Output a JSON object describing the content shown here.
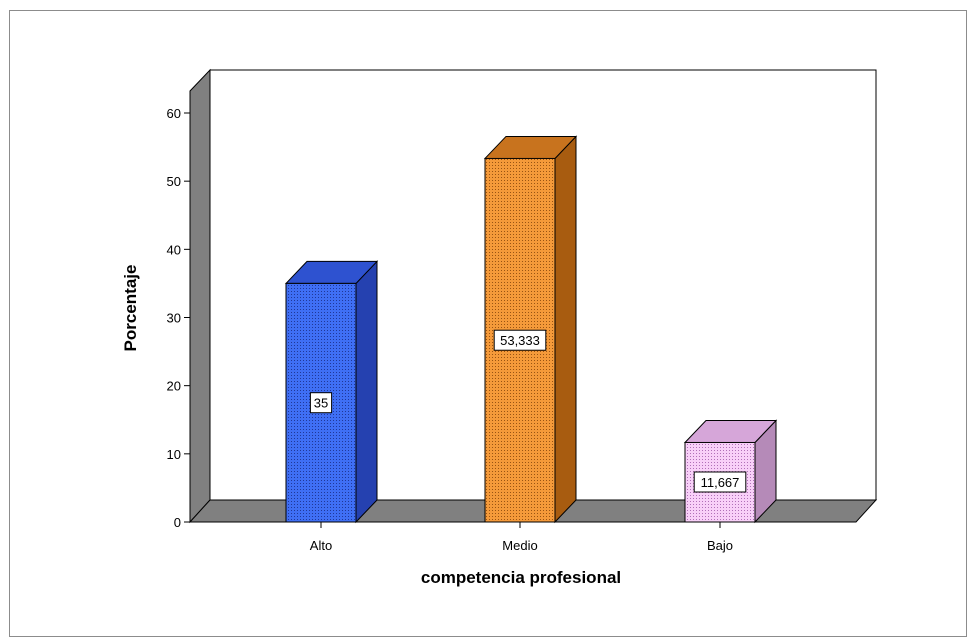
{
  "chart_data": {
    "type": "bar",
    "categories": [
      "Alto",
      "Medio",
      "Bajo"
    ],
    "values": [
      35,
      53.333,
      11.667
    ],
    "data_labels": [
      "35",
      "53,333",
      "11,667"
    ],
    "colors": [
      "#3f6ff5",
      "#f59a3a",
      "#f6c3f6"
    ],
    "side_colors": [
      "#2541b0",
      "#a85c10",
      "#b58ab8"
    ],
    "top_colors": [
      "#2e52d0",
      "#c8731e",
      "#d6a6d9"
    ],
    "xlabel": "competencia profesional",
    "ylabel": "Porcentaje",
    "ylim": [
      0,
      60
    ],
    "yticks": [
      0,
      10,
      20,
      30,
      40,
      50,
      60
    ],
    "grid": false,
    "style": "3d-bars"
  }
}
